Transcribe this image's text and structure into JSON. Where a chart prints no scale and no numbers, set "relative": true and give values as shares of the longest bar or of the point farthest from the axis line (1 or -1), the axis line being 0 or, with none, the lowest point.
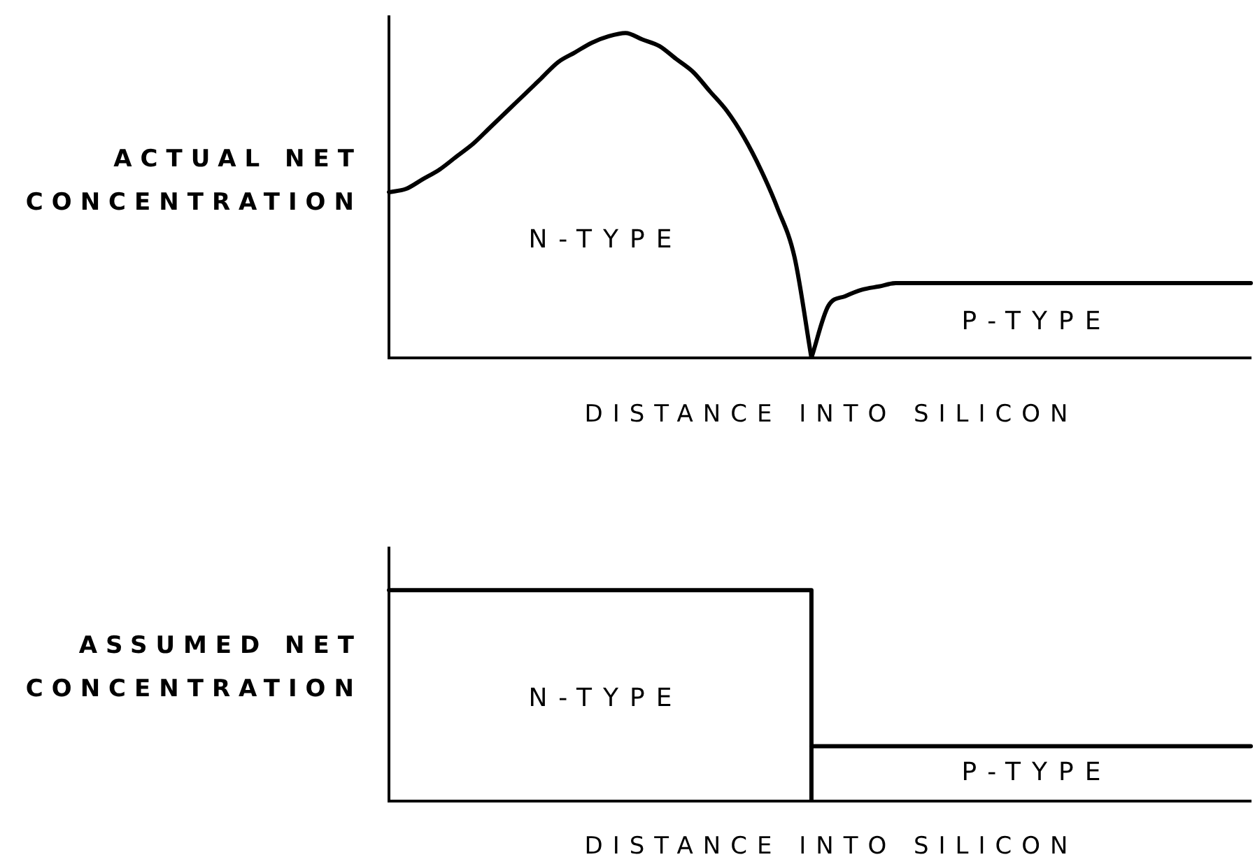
{
  "chart_data": [
    {
      "type": "line",
      "relative": true,
      "ylabel": "ACTUAL NET CONCENTRATION",
      "xlabel": "DISTANCE INTO SILICON",
      "annotations": [
        "N-TYPE",
        "P-TYPE"
      ],
      "categories": [
        null,
        null,
        null,
        null,
        null,
        null,
        null,
        null,
        null,
        null,
        null,
        null,
        null,
        null,
        null,
        null,
        null,
        null,
        null,
        null,
        null,
        null,
        null,
        null,
        null,
        null,
        null,
        null,
        null,
        null,
        null,
        null,
        null,
        null,
        null,
        null,
        null,
        null,
        null,
        null,
        null,
        null,
        null,
        null,
        null,
        null,
        null,
        null,
        null,
        null,
        null,
        null
      ],
      "series": [
        {
          "color": "#000000",
          "values": [
            0.51,
            0.52,
            0.55,
            0.58,
            0.62,
            0.66,
            0.71,
            0.76,
            0.81,
            0.86,
            0.91,
            0.94,
            0.97,
            0.99,
            1,
            0.98,
            0.96,
            0.92,
            0.88,
            0.82,
            0.76,
            0.68,
            0.58,
            0.46,
            0.31,
            0,
            null,
            null,
            null,
            null,
            null,
            null,
            null,
            null,
            null,
            null,
            null,
            null,
            null,
            null,
            null,
            null,
            null,
            null,
            null,
            null,
            null,
            null,
            null,
            null,
            null,
            null
          ]
        },
        {
          "color": "#000000",
          "values": [
            null,
            null,
            null,
            null,
            null,
            null,
            null,
            null,
            null,
            null,
            null,
            null,
            null,
            null,
            null,
            null,
            null,
            null,
            null,
            null,
            null,
            null,
            null,
            null,
            null,
            0,
            0.16,
            0.19,
            0.21,
            0.22,
            0.23,
            0.23,
            0.23,
            0.23,
            0.23,
            0.23,
            0.23,
            0.23,
            0.23,
            0.23,
            0.23,
            0.23,
            0.23,
            0.23,
            0.23,
            0.23,
            0.23,
            0.23,
            0.23,
            0.23,
            0.23,
            0.23
          ]
        }
      ]
    },
    {
      "type": "step",
      "relative": true,
      "ylabel": "ASSUMED NET CONCENTRATION",
      "xlabel": "DISTANCE INTO SILICON",
      "annotations": [
        "N-TYPE",
        "P-TYPE"
      ],
      "categories": [
        null,
        null,
        null,
        null,
        null,
        null,
        null,
        null,
        null,
        null,
        null,
        null,
        null,
        null,
        null,
        null,
        null,
        null,
        null,
        null,
        null,
        null,
        null,
        null,
        null,
        null,
        null,
        null,
        null,
        null,
        null,
        null,
        null,
        null,
        null,
        null,
        null,
        null,
        null,
        null,
        null,
        null,
        null,
        null,
        null,
        null,
        null,
        null,
        null,
        null,
        null,
        null
      ],
      "series": [
        {
          "color": "#000000",
          "values": [
            1,
            1,
            1,
            1,
            1,
            1,
            1,
            1,
            1,
            1,
            1,
            1,
            1,
            1,
            1,
            1,
            1,
            1,
            1,
            1,
            1,
            1,
            1,
            1,
            1,
            0,
            null,
            null,
            null,
            null,
            null,
            null,
            null,
            null,
            null,
            null,
            null,
            null,
            null,
            null,
            null,
            null,
            null,
            null,
            null,
            null,
            null,
            null,
            null,
            null,
            null,
            null
          ]
        },
        {
          "color": "#000000",
          "values": [
            null,
            null,
            null,
            null,
            null,
            null,
            null,
            null,
            null,
            null,
            null,
            null,
            null,
            null,
            null,
            null,
            null,
            null,
            null,
            null,
            null,
            null,
            null,
            null,
            null,
            0.26,
            0.26,
            0.26,
            0.26,
            0.26,
            0.26,
            0.26,
            0.26,
            0.26,
            0.26,
            0.26,
            0.26,
            0.26,
            0.26,
            0.26,
            0.26,
            0.26,
            0.26,
            0.26,
            0.26,
            0.26,
            0.26,
            0.26,
            0.26,
            0.26,
            0.26,
            0.26
          ]
        }
      ]
    }
  ]
}
